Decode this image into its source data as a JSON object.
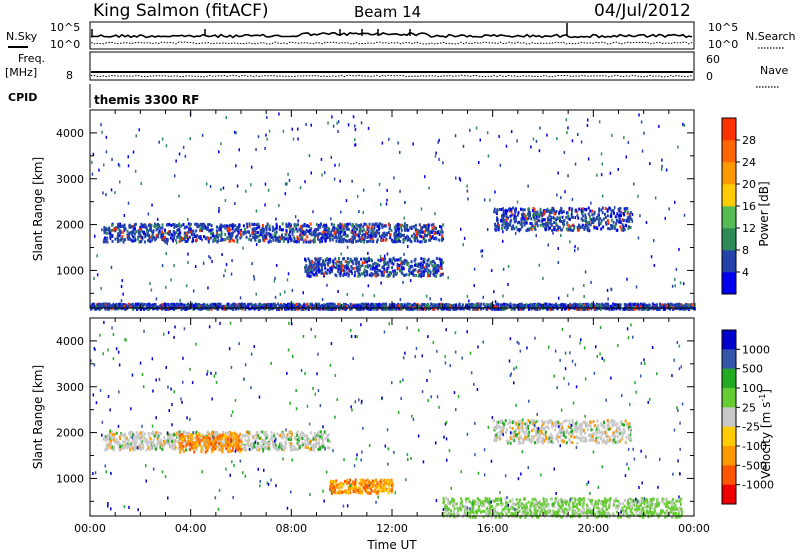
{
  "header": {
    "station": "King Salmon (fitACF)",
    "beam": "Beam 14",
    "date": "04/Jul/2012"
  },
  "strips": {
    "nsky_label": "N.Sky",
    "nsearch_label": "N.Search",
    "noise_ticks": [
      "10^5",
      "10^0"
    ],
    "freq_label": "Freq.",
    "freq_unit": "[MHz]",
    "freq_tick": "8",
    "nave_label": "Nave",
    "nave_ticks": [
      "60",
      "0"
    ],
    "cpid_label": "CPID",
    "cpid_value": "themis 3300 RF"
  },
  "colors": {
    "power_scale": [
      "#0000ee",
      "#2244aa",
      "#2e8b57",
      "#55bb55",
      "#ffcc00",
      "#ff9900",
      "#ff6600",
      "#ff3300",
      "#ee0000"
    ],
    "velocity_scale": [
      "#0000cc",
      "#3355aa",
      "#22aa22",
      "#66cc33",
      "#c8c8c8",
      "#ffcc00",
      "#ff9900",
      "#ff5500",
      "#ee0000"
    ],
    "background_blue": "#0000ee"
  },
  "chart_data": [
    {
      "type": "heatmap",
      "panel": "power",
      "xlabel": "",
      "ylabel": "Slant Range [km]",
      "ylim": [
        180,
        4500
      ],
      "yticks": [
        "1000",
        "2000",
        "3000",
        "4000"
      ],
      "colorbar": {
        "label": "Power [dB]",
        "range": [
          0,
          32
        ],
        "ticks": [
          "4",
          "8",
          "12",
          "16",
          "20",
          "24",
          "28"
        ]
      },
      "echo_bands": [
        {
          "start_hour": 0.5,
          "end_hour": 14.0,
          "range_km": [
            1650,
            2050
          ],
          "dominant_value_db": 6
        },
        {
          "start_hour": 8.5,
          "end_hour": 14.0,
          "range_km": [
            900,
            1300
          ],
          "dominant_value_db": 8
        },
        {
          "start_hour": 16.0,
          "end_hour": 21.5,
          "range_km": [
            1900,
            2400
          ],
          "dominant_value_db": 5
        },
        {
          "start_hour": 0.0,
          "end_hour": 24.0,
          "range_km": [
            180,
            300
          ],
          "dominant_value_db": 4
        }
      ]
    },
    {
      "type": "heatmap",
      "panel": "velocity",
      "xlabel": "Time UT",
      "ylabel": "Slant Range [km]",
      "xlim": [
        "00:00",
        "24:00"
      ],
      "xticks": [
        "00:00",
        "04:00",
        "08:00",
        "12:00",
        "16:00",
        "20:00",
        "00:00"
      ],
      "ylim": [
        180,
        4500
      ],
      "yticks": [
        "1000",
        "2000",
        "3000",
        "4000"
      ],
      "colorbar": {
        "label": "Velocity [m s",
        "label_superscript": "-1",
        "label_close": "]",
        "ticks": [
          "1000",
          "500",
          "100",
          "25",
          "-25",
          "-100",
          "-500",
          "-1000"
        ]
      },
      "echo_bands": [
        {
          "start_hour": 0.5,
          "end_hour": 9.5,
          "range_km": [
            1650,
            2050
          ],
          "dominant_velocity": 0
        },
        {
          "start_hour": 3.5,
          "end_hour": 6.0,
          "range_km": [
            1600,
            2000
          ],
          "dominant_velocity": -300
        },
        {
          "start_hour": 9.5,
          "end_hour": 12.0,
          "range_km": [
            700,
            1000
          ],
          "dominant_velocity": -400
        },
        {
          "start_hour": 16.0,
          "end_hour": 21.5,
          "range_km": [
            1800,
            2300
          ],
          "dominant_velocity": 0
        },
        {
          "start_hour": 14.0,
          "end_hour": 23.5,
          "range_km": [
            180,
            600
          ],
          "dominant_velocity": 60
        }
      ]
    }
  ]
}
